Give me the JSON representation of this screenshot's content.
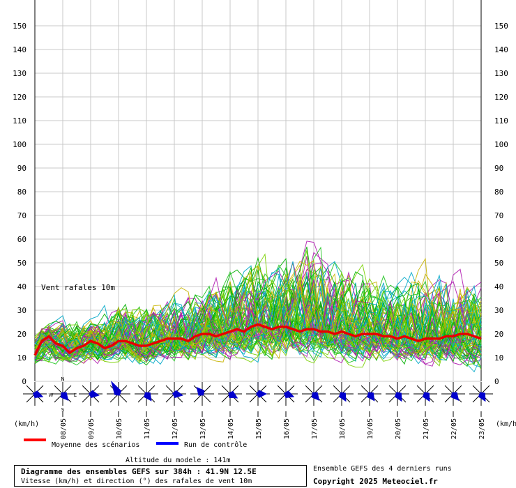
{
  "chart_data": {
    "type": "line",
    "title": "Diagramme des ensembles GEFS sur 384h : 41.9N 12.5E",
    "subtitle": "Vitesse (km/h) et direction (°) des rafales de vent 10m",
    "annotation": "Vent rafales 10m",
    "altitude_label": "Altitude du modele : 141m",
    "run_info": "Ensemble GEFS des 4 derniers runs",
    "copyright": "Copyright 2025 Meteociel.fr",
    "unit_left": "(km/h)",
    "unit_right": "(km/h)",
    "ylim": [
      0,
      155
    ],
    "yticks": [
      0,
      10,
      20,
      30,
      40,
      50,
      60,
      70,
      80,
      90,
      100,
      110,
      120,
      130,
      140,
      150
    ],
    "x_range_days": [
      0,
      16
    ],
    "grid": true,
    "categories": [
      "08/05",
      "09/05",
      "10/05",
      "11/05",
      "12/05",
      "13/05",
      "14/05",
      "15/05",
      "16/05",
      "17/05",
      "18/05",
      "19/05",
      "20/05",
      "21/05",
      "22/05",
      "23/05"
    ],
    "category_positions": [
      1,
      2,
      3,
      4,
      5,
      6,
      7,
      8,
      9,
      10,
      11,
      12,
      13,
      14,
      15,
      16
    ],
    "legend": [
      {
        "label": "Moyenne des scénarios",
        "color": "#ff0000"
      },
      {
        "label": "Run de contrôle",
        "color": "#0000ff"
      }
    ],
    "mean_series": {
      "name": "Moyenne des scénarios",
      "color": "#e60000",
      "x": [
        0,
        0.25,
        0.5,
        0.75,
        1,
        1.25,
        1.5,
        1.75,
        2,
        2.25,
        2.5,
        2.75,
        3,
        3.25,
        3.5,
        3.75,
        4,
        4.25,
        4.5,
        4.75,
        5,
        5.25,
        5.5,
        5.75,
        6,
        6.25,
        6.5,
        6.75,
        7,
        7.25,
        7.5,
        7.75,
        8,
        8.25,
        8.5,
        8.75,
        9,
        9.25,
        9.5,
        9.75,
        10,
        10.25,
        10.5,
        10.75,
        11,
        11.25,
        11.5,
        11.75,
        12,
        12.25,
        12.5,
        12.75,
        13,
        13.25,
        13.5,
        13.75,
        14,
        14.25,
        14.5,
        14.75,
        15,
        15.25,
        15.5,
        15.75,
        16
      ],
      "y": [
        11,
        17,
        19,
        16,
        15,
        12,
        14,
        15,
        17,
        16,
        14,
        15,
        17,
        17,
        16,
        15,
        15,
        16,
        17,
        18,
        18,
        18,
        17,
        19,
        20,
        20,
        19,
        20,
        21,
        22,
        21,
        23,
        24,
        23,
        22,
        23,
        23,
        22,
        21,
        22,
        22,
        21,
        21,
        20,
        21,
        20,
        19,
        20,
        20,
        20,
        19,
        19,
        18,
        19,
        18,
        17,
        18,
        18,
        18,
        19,
        19,
        20,
        20,
        19,
        18
      ]
    },
    "ensemble_colors": [
      "#00b000",
      "#22c422",
      "#c8b400",
      "#b01ab0",
      "#00a8c8",
      "#7ad000"
    ],
    "ensemble_member_count": 84,
    "ensemble_band": {
      "x": [
        0,
        1,
        2,
        3,
        4,
        5,
        6,
        7,
        8,
        9,
        10,
        11,
        12,
        13,
        14,
        15,
        16
      ],
      "low": [
        6,
        8,
        7,
        8,
        7,
        8,
        8,
        9,
        9,
        9,
        9,
        8,
        8,
        8,
        7,
        7,
        5
      ],
      "high": [
        24,
        30,
        28,
        36,
        36,
        40,
        42,
        52,
        58,
        56,
        64,
        54,
        50,
        48,
        54,
        54,
        46
      ]
    },
    "wind_directions_deg": [
      110,
      140,
      100,
      330,
      145,
      100,
      320,
      120,
      90,
      110,
      140,
      150,
      145,
      150,
      150,
      140,
      150
    ]
  }
}
